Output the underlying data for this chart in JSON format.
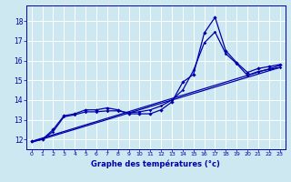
{
  "xlabel": "Graphe des températures (°c)",
  "bg_color": "#cde8f0",
  "grid_color": "#ffffff",
  "line_color": "#0000aa",
  "xlim": [
    -0.5,
    23.5
  ],
  "ylim": [
    11.5,
    18.8
  ],
  "xticks": [
    0,
    1,
    2,
    3,
    4,
    5,
    6,
    7,
    8,
    9,
    10,
    11,
    12,
    13,
    14,
    15,
    16,
    17,
    18,
    19,
    20,
    21,
    22,
    23
  ],
  "yticks": [
    12,
    13,
    14,
    15,
    16,
    17,
    18
  ],
  "line1_x": [
    0,
    1,
    2,
    3,
    4,
    5,
    6,
    7,
    8,
    9,
    10,
    11,
    12,
    13,
    14,
    15,
    16,
    17,
    18,
    19,
    20,
    21,
    22,
    23
  ],
  "line1_y": [
    11.9,
    12.0,
    12.5,
    13.2,
    13.3,
    13.5,
    13.5,
    13.6,
    13.5,
    13.3,
    13.3,
    13.3,
    13.5,
    13.9,
    14.9,
    15.3,
    17.4,
    18.2,
    16.5,
    15.9,
    15.4,
    15.6,
    15.7,
    15.8
  ],
  "line2_x": [
    0,
    1,
    2,
    3,
    4,
    5,
    6,
    7,
    8,
    9,
    10,
    11,
    12,
    13,
    14,
    15,
    16,
    17,
    18,
    19,
    20,
    21,
    22,
    23
  ],
  "line2_y": [
    11.9,
    12.0,
    12.4,
    13.15,
    13.25,
    13.4,
    13.4,
    13.45,
    13.45,
    13.35,
    13.4,
    13.5,
    13.7,
    14.0,
    14.5,
    15.5,
    16.9,
    17.45,
    16.35,
    15.85,
    15.25,
    15.45,
    15.55,
    15.65
  ],
  "line3_x": [
    0,
    23
  ],
  "line3_y": [
    11.9,
    15.75
  ],
  "line4_x": [
    0,
    23
  ],
  "line4_y": [
    11.85,
    15.65
  ]
}
